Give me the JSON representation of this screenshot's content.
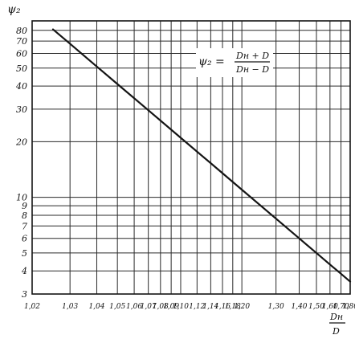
{
  "chart_data": {
    "type": "line",
    "title": "",
    "ylabel": "ψ₂",
    "xlabel": {
      "numerator": "Dн",
      "denominator": "D"
    },
    "formula": {
      "lhs": "ψ₂ =",
      "numerator": "Dн + D",
      "denominator": "Dн − D"
    },
    "x_scale": "log10((x+1)/(x-1))",
    "y_scale": "log",
    "xlim": [
      1.02,
      1.8
    ],
    "ylim": [
      3,
      90
    ],
    "grid": true,
    "x_ticks": [
      1.02,
      1.03,
      1.04,
      1.05,
      1.06,
      1.07,
      1.08,
      1.09,
      1.1,
      1.12,
      1.14,
      1.16,
      1.18,
      1.2,
      1.3,
      1.4,
      1.5,
      1.6,
      1.7,
      1.8
    ],
    "x_tick_labels": [
      "1,02",
      "1,03",
      "1,04",
      "1,05",
      "1,06",
      "1,07",
      "1,08",
      "1,09",
      "1,10",
      "1,12",
      "1,14",
      "1,16",
      "1,18",
      "1,20",
      "1,30",
      "1,40",
      "1,50",
      "1,60",
      "1,70",
      "1,80"
    ],
    "y_ticks": [
      3,
      4,
      5,
      6,
      7,
      8,
      9,
      10,
      20,
      30,
      40,
      50,
      60,
      70,
      80
    ],
    "y_tick_labels": [
      "3",
      "4",
      "5",
      "6",
      "7",
      "8",
      "9",
      "10",
      "20",
      "30",
      "40",
      "50",
      "60",
      "70",
      "80"
    ],
    "series": [
      {
        "x": [
          1.025,
          1.03,
          1.04,
          1.05,
          1.07,
          1.1,
          1.14,
          1.2,
          1.3,
          1.4,
          1.5,
          1.6,
          1.7,
          1.8
        ],
        "values": [
          81,
          67.7,
          51,
          41,
          29.6,
          21,
          15.3,
          11,
          7.67,
          6,
          5,
          4.33,
          3.86,
          3.5
        ]
      }
    ]
  }
}
